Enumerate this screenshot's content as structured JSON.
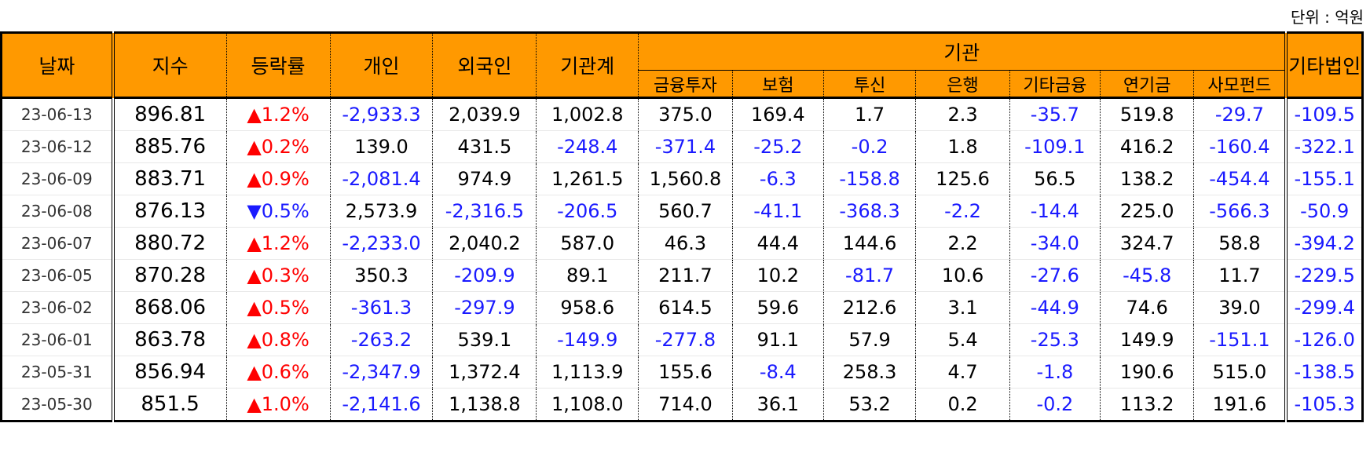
{
  "unit_label": "단위 : 억원",
  "headers": {
    "date": "날짜",
    "index": "지수",
    "change": "등락률",
    "individual": "개인",
    "foreign": "외국인",
    "inst_total": "기관계",
    "institution": "기관",
    "sub": [
      "금융투자",
      "보험",
      "투신",
      "은행",
      "기타금융",
      "연기금",
      "사모펀드"
    ],
    "other_corp": "기타법인"
  },
  "colors": {
    "header_bg": "#ff9900",
    "negative": "#1a1aff",
    "up": "#ff0000",
    "down": "#1a1aff"
  },
  "rows": [
    {
      "date": "23-06-13",
      "index": "896.81",
      "dir": "up",
      "arrow": "▲",
      "chg": "1.2%",
      "cells": [
        "-2,933.3",
        "2,039.9",
        "1,002.8",
        "375.0",
        "169.4",
        "1.7",
        "2.3",
        "-35.7",
        "519.8",
        "-29.7",
        "-109.5"
      ]
    },
    {
      "date": "23-06-12",
      "index": "885.76",
      "dir": "up",
      "arrow": "▲",
      "chg": "0.2%",
      "cells": [
        "139.0",
        "431.5",
        "-248.4",
        "-371.4",
        "-25.2",
        "-0.2",
        "1.8",
        "-109.1",
        "416.2",
        "-160.4",
        "-322.1"
      ]
    },
    {
      "date": "23-06-09",
      "index": "883.71",
      "dir": "up",
      "arrow": "▲",
      "chg": "0.9%",
      "cells": [
        "-2,081.4",
        "974.9",
        "1,261.5",
        "1,560.8",
        "-6.3",
        "-158.8",
        "125.6",
        "56.5",
        "138.2",
        "-454.4",
        "-155.1"
      ]
    },
    {
      "date": "23-06-08",
      "index": "876.13",
      "dir": "down",
      "arrow": "▼",
      "chg": "0.5%",
      "cells": [
        "2,573.9",
        "-2,316.5",
        "-206.5",
        "560.7",
        "-41.1",
        "-368.3",
        "-2.2",
        "-14.4",
        "225.0",
        "-566.3",
        "-50.9"
      ]
    },
    {
      "date": "23-06-07",
      "index": "880.72",
      "dir": "up",
      "arrow": "▲",
      "chg": "1.2%",
      "cells": [
        "-2,233.0",
        "2,040.2",
        "587.0",
        "46.3",
        "44.4",
        "144.6",
        "2.2",
        "-34.0",
        "324.7",
        "58.8",
        "-394.2"
      ]
    },
    {
      "date": "23-06-05",
      "index": "870.28",
      "dir": "up",
      "arrow": "▲",
      "chg": "0.3%",
      "cells": [
        "350.3",
        "-209.9",
        "89.1",
        "211.7",
        "10.2",
        "-81.7",
        "10.6",
        "-27.6",
        "-45.8",
        "11.7",
        "-229.5"
      ]
    },
    {
      "date": "23-06-02",
      "index": "868.06",
      "dir": "up",
      "arrow": "▲",
      "chg": "0.5%",
      "cells": [
        "-361.3",
        "-297.9",
        "958.6",
        "614.5",
        "59.6",
        "212.6",
        "3.1",
        "-44.9",
        "74.6",
        "39.0",
        "-299.4"
      ]
    },
    {
      "date": "23-06-01",
      "index": "863.78",
      "dir": "up",
      "arrow": "▲",
      "chg": "0.8%",
      "cells": [
        "-263.2",
        "539.1",
        "-149.9",
        "-277.8",
        "91.1",
        "57.9",
        "5.4",
        "-25.3",
        "149.9",
        "-151.1",
        "-126.0"
      ]
    },
    {
      "date": "23-05-31",
      "index": "856.94",
      "dir": "up",
      "arrow": "▲",
      "chg": "0.6%",
      "cells": [
        "-2,347.9",
        "1,372.4",
        "1,113.9",
        "155.6",
        "-8.4",
        "258.3",
        "4.7",
        "-1.8",
        "190.6",
        "515.0",
        "-138.5"
      ]
    },
    {
      "date": "23-05-30",
      "index": "851.5",
      "dir": "up",
      "arrow": "▲",
      "chg": "1.0%",
      "cells": [
        "-2,141.6",
        "1,138.8",
        "1,108.0",
        "714.0",
        "36.1",
        "53.2",
        "0.2",
        "-0.2",
        "113.2",
        "191.6",
        "-105.3"
      ]
    }
  ]
}
